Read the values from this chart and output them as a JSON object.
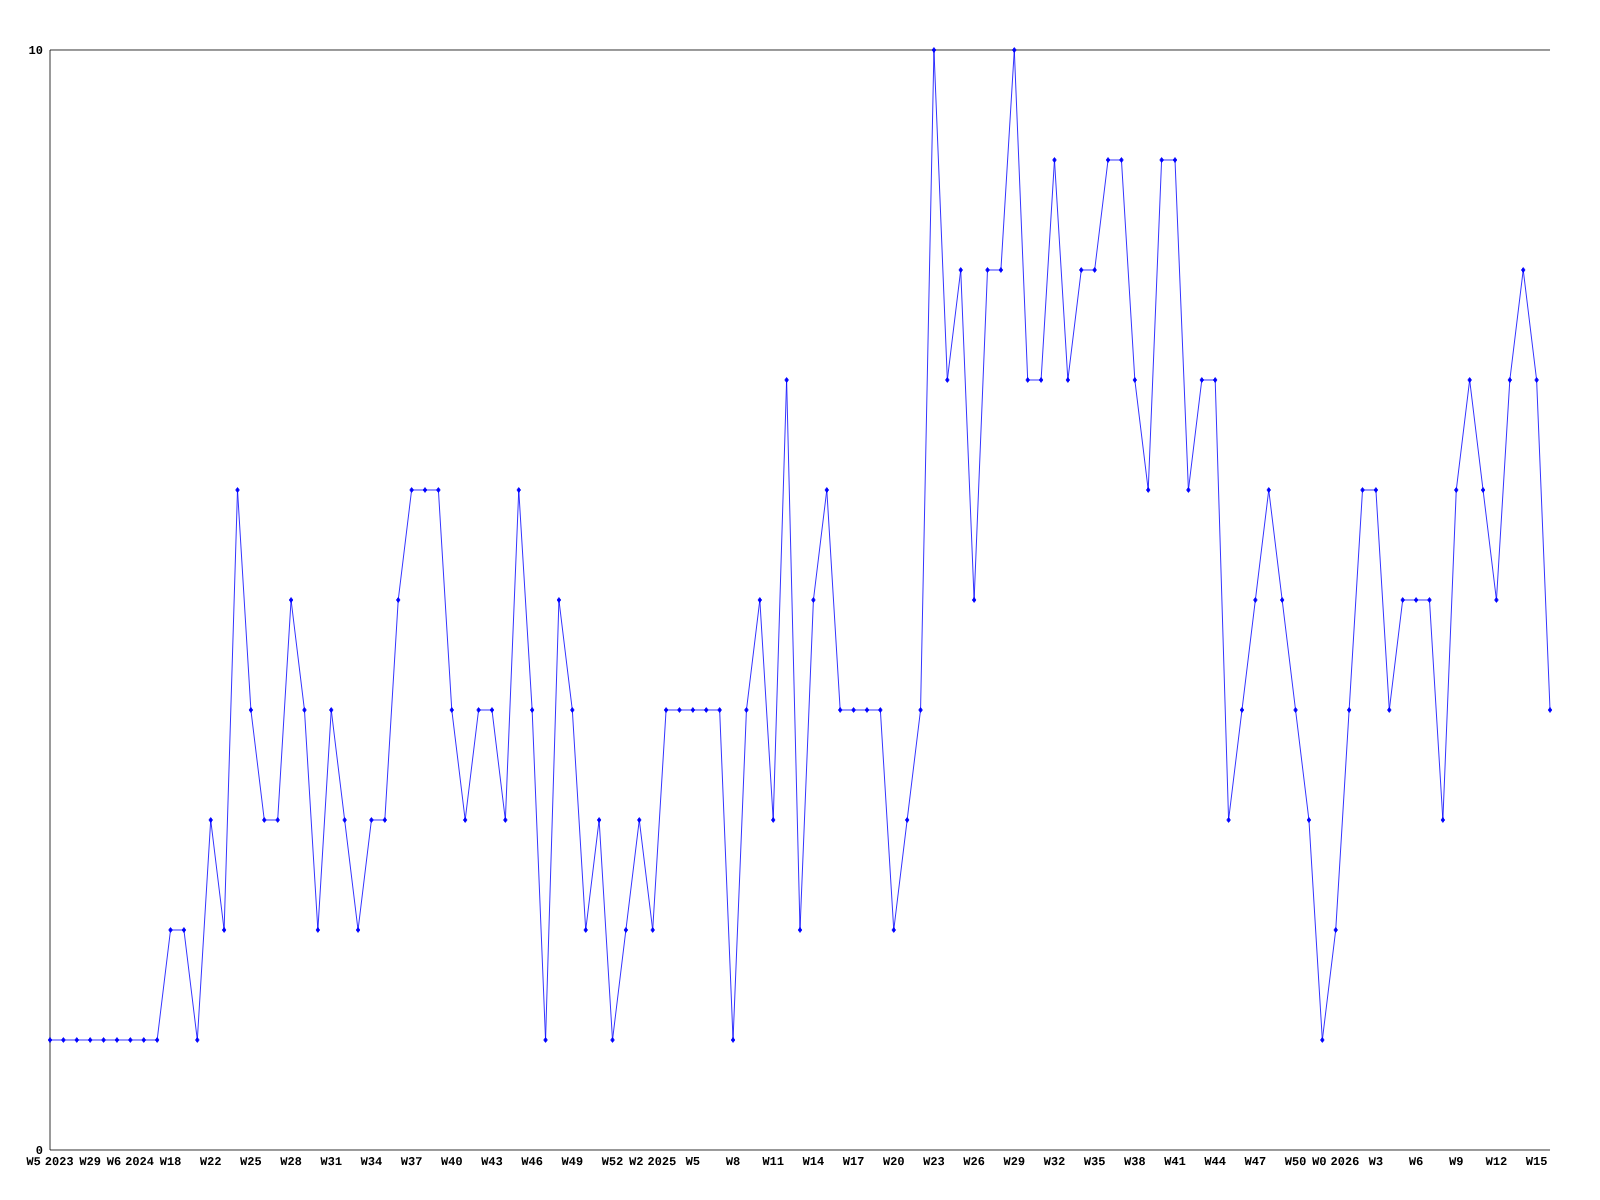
{
  "chart_data": {
    "type": "line",
    "color": "#0000ff",
    "marker": "diamond",
    "ylim": [
      0,
      10
    ],
    "yticks": [
      0,
      10
    ],
    "categories": [
      "W5 2023",
      null,
      null,
      "W29",
      null,
      null,
      "W6 2024",
      null,
      null,
      "W18",
      null,
      null,
      "W22",
      null,
      null,
      "W25",
      null,
      null,
      "W28",
      null,
      null,
      "W31",
      null,
      null,
      "W34",
      null,
      null,
      "W37",
      null,
      null,
      "W40",
      null,
      null,
      "W43",
      null,
      null,
      "W46",
      null,
      null,
      "W49",
      null,
      null,
      "W52",
      null,
      null,
      "W2 2025",
      null,
      null,
      "W5",
      null,
      null,
      "W8",
      null,
      null,
      "W11",
      null,
      null,
      "W14",
      null,
      null,
      "W17",
      null,
      null,
      "W20",
      null,
      null,
      "W23",
      null,
      null,
      "W26",
      null,
      null,
      "W29",
      null,
      null,
      "W32",
      null,
      null,
      "W35",
      null,
      null,
      "W38",
      null,
      null,
      "W41",
      null,
      null,
      "W44",
      null,
      null,
      "W47",
      null,
      null,
      "W50",
      null,
      null,
      "W0 2026",
      null,
      null,
      "W3",
      null,
      null,
      "W6",
      null,
      null,
      "W9",
      null,
      null,
      "W12",
      null,
      null,
      "W15",
      null
    ],
    "values": [
      1,
      1,
      1,
      1,
      1,
      1,
      1,
      1,
      1,
      2,
      2,
      1,
      3,
      2,
      6,
      4,
      3,
      3,
      5,
      4,
      2,
      4,
      3,
      2,
      3,
      3,
      5,
      6,
      6,
      6,
      4,
      3,
      4,
      4,
      3,
      6,
      4,
      1,
      5,
      4,
      2,
      3,
      1,
      2,
      3,
      2,
      4,
      4,
      4,
      4,
      4,
      1,
      4,
      5,
      3,
      7,
      2,
      5,
      6,
      4,
      4,
      4,
      4,
      2,
      3,
      4,
      10,
      7,
      8,
      5,
      8,
      8,
      10,
      7,
      7,
      9,
      7,
      8,
      8,
      9,
      9,
      7,
      6,
      9,
      9,
      6,
      7,
      7,
      3,
      4,
      5,
      6,
      5,
      4,
      3,
      1,
      2,
      4,
      6,
      6,
      4,
      5,
      5,
      5,
      3,
      6,
      7,
      6,
      5,
      7,
      8,
      7,
      4
    ]
  }
}
